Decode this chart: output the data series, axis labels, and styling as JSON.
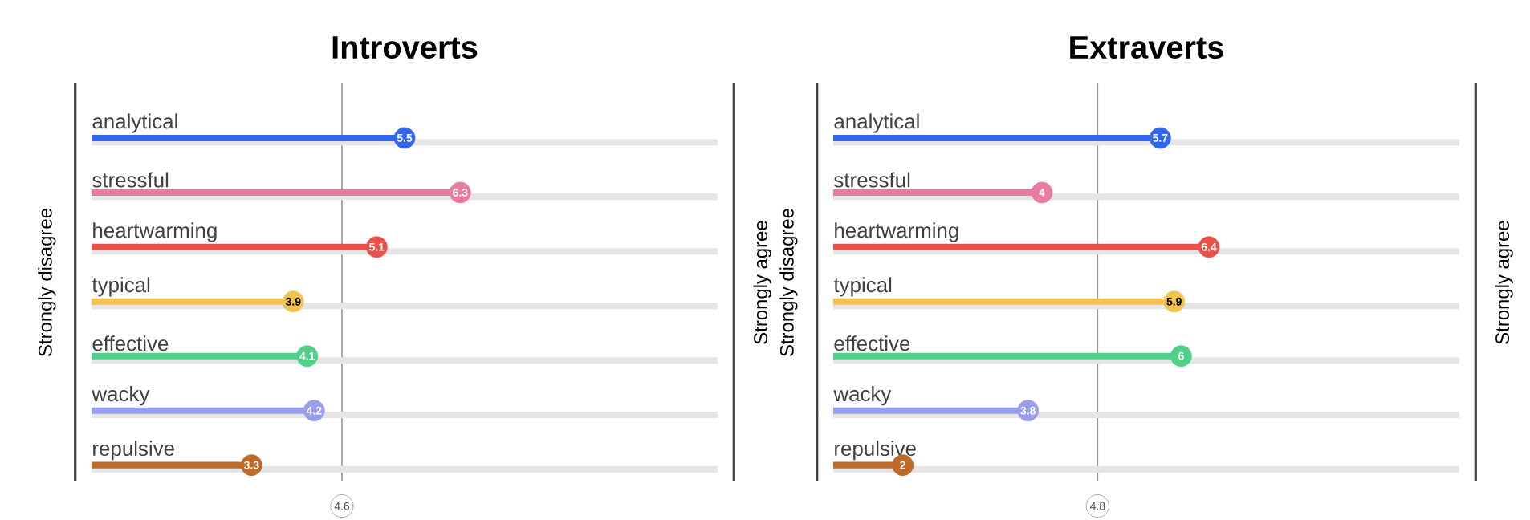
{
  "chart_data": [
    {
      "type": "lollipop",
      "orientation": "horizontal",
      "title": "Introverts",
      "ylabel": "Strongly disagree",
      "y2label": "Strongly agree",
      "categories": [
        "analytical",
        "stressful",
        "heartwarming",
        "typical",
        "effective",
        "wacky",
        "repulsive"
      ],
      "values": [
        5.5,
        6.3,
        5.1,
        3.9,
        4.1,
        4.2,
        3.3
      ],
      "colors": [
        "#3366ee",
        "#e87ba3",
        "#e8504a",
        "#f2c34e",
        "#4fcf87",
        "#9a9cec",
        "#bf6a28"
      ],
      "xlim": [
        1,
        10
      ],
      "data_labels": true,
      "tick_labels": "y",
      "grid": "y",
      "ref_lines": [
        {
          "axis": "x",
          "value": 4.6,
          "label": "4.6"
        }
      ]
    },
    {
      "type": "lollipop",
      "orientation": "horizontal",
      "title": "Extraverts",
      "ylabel": "Strongly disagree",
      "y2label": "Strongly agree",
      "categories": [
        "analytical",
        "stressful",
        "heartwarming",
        "typical",
        "effective",
        "wacky",
        "repulsive"
      ],
      "values": [
        5.7,
        4,
        6.4,
        5.9,
        6,
        3.8,
        2
      ],
      "colors": [
        "#3366ee",
        "#e87ba3",
        "#e8504a",
        "#f2c34e",
        "#4fcf87",
        "#9a9cec",
        "#bf6a28"
      ],
      "xlim": [
        1,
        10
      ],
      "data_labels": true,
      "tick_labels": "y",
      "grid": "y",
      "ref_lines": [
        {
          "axis": "x",
          "value": 4.8,
          "label": "4.8"
        }
      ]
    }
  ]
}
